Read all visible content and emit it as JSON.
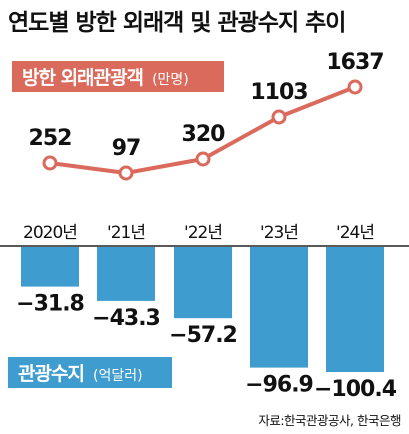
{
  "title": "연도별 방한 외래객 및 관광수지 추이",
  "source": "자료:한국관광공사, 한국은행",
  "colors": {
    "line": "#d96a5c",
    "bar": "#3f9ccf",
    "line_label_bg": "#d96a5c",
    "bar_label_bg": "#3f9ccf"
  },
  "chart_data": [
    {
      "type": "line",
      "categories": [
        "2020년",
        "'21년",
        "'22년",
        "'23년",
        "'24년"
      ],
      "series": [
        {
          "name": "방한 외래관광객",
          "unit": "(만명)",
          "values": [
            252,
            97,
            320,
            1103,
            1637
          ]
        }
      ],
      "value_labels": [
        "252",
        "97",
        "320",
        "1103",
        "1637"
      ]
    },
    {
      "type": "bar",
      "categories": [
        "2020년",
        "'21년",
        "'22년",
        "'23년",
        "'24년"
      ],
      "series": [
        {
          "name": "관광수지",
          "unit": "(억달러)",
          "values": [
            -31.8,
            -43.3,
            -57.2,
            -96.9,
            -100.4
          ]
        }
      ],
      "value_labels": [
        "−31.8",
        "−43.3",
        "−57.2",
        "−96.9",
        "−100.4"
      ]
    }
  ]
}
